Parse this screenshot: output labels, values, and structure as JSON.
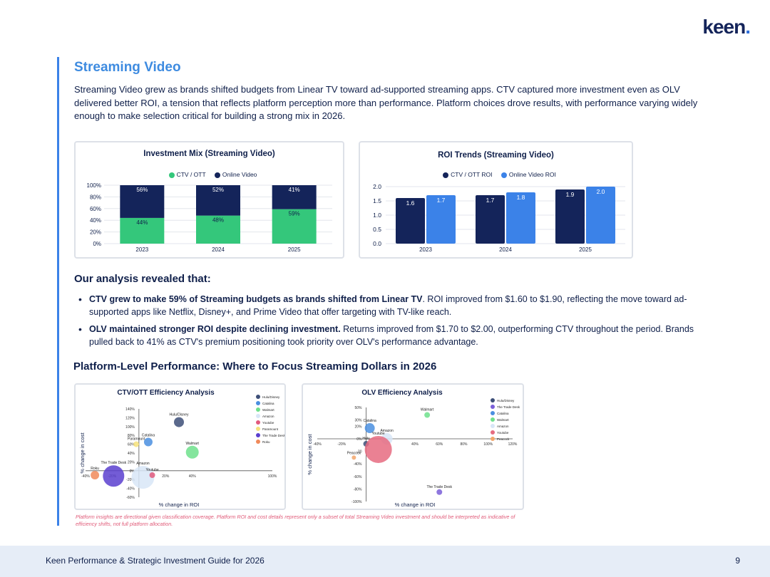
{
  "brand": {
    "logo_text": "keen",
    "accent": "#3b82e8",
    "navy": "#14245a",
    "green": "#34c77b"
  },
  "section": {
    "title": "Streaming Video",
    "intro": "Streaming Video grew as brands shifted budgets from Linear TV toward ad-supported streaming apps. CTV captured more investment even as OLV delivered better ROI, a tension that reflects platform perception more than performance. Platform choices drove results, with performance varying widely enough to make selection critical for building a strong mix in 2026."
  },
  "investment_chart": {
    "title": "Investment Mix (Streaming Video)",
    "legend": [
      "CTV / OTT",
      "Online Video"
    ]
  },
  "roi_chart": {
    "title": "ROI Trends (Streaming Video)",
    "legend": [
      "CTV / OTT ROI",
      "Online Video ROI"
    ]
  },
  "analysis": {
    "title": "Our analysis revealed that:",
    "bullets": [
      {
        "bold": "CTV grew to make 59% of Streaming budgets as brands shifted from Linear TV",
        "text": ". ROI improved from $1.60 to $1.90, reflecting the move toward ad-supported apps like Netflix, Disney+, and Prime Video that offer targeting with TV-like reach."
      },
      {
        "bold": "OLV maintained stronger ROI despite declining investment.",
        "text": " Returns improved from $1.70 to $2.00, outperforming CTV throughout the period. Brands pulled back to 41% as CTV's premium positioning took priority over OLV's performance advantage."
      }
    ]
  },
  "platform": {
    "title": "Platform-Level Performance: Where to Focus Streaming Dollars in 2026",
    "ctv_title": "CTV/OTT Efficiency Analysis",
    "olv_title": "OLV Efficiency Analysis",
    "x_label": "% change in ROI",
    "y_label": "% change in cost"
  },
  "footnote": "Platform insights are directional given classification coverage. Platform ROI and cost details represent only a subset of total Streaming Video investment and should be interpreted as indicative of efficiency shifts, not full platform allocation.",
  "footer": {
    "text": "Keen Performance & Strategic Investment Guide for 2026",
    "page": "9"
  },
  "chart_data": [
    {
      "type": "bar",
      "stacked": true,
      "title": "Investment Mix (Streaming Video)",
      "categories": [
        "2023",
        "2024",
        "2025"
      ],
      "series": [
        {
          "name": "CTV / OTT",
          "values": [
            44,
            48,
            59
          ],
          "labels": [
            "44%",
            "48%",
            "59%"
          ],
          "color": "#34c77b"
        },
        {
          "name": "Online Video",
          "values": [
            56,
            52,
            41
          ],
          "labels": [
            "56%",
            "52%",
            "41%"
          ],
          "color": "#14245a"
        }
      ],
      "yticks": [
        "0%",
        "20%",
        "40%",
        "60%",
        "80%",
        "100%"
      ],
      "ylim": [
        0,
        100
      ]
    },
    {
      "type": "bar",
      "title": "ROI Trends (Streaming Video)",
      "categories": [
        "2023",
        "2024",
        "2025"
      ],
      "series": [
        {
          "name": "CTV / OTT ROI",
          "values": [
            1.6,
            1.7,
            1.9
          ],
          "labels": [
            "1.6",
            "1.7",
            "1.9"
          ],
          "color": "#14245a"
        },
        {
          "name": "Online Video ROI",
          "values": [
            1.7,
            1.8,
            2.0
          ],
          "labels": [
            "1.7",
            "1.8",
            "2.0"
          ],
          "color": "#3b82e8"
        }
      ],
      "yticks": [
        "0.0",
        "0.5",
        "1.0",
        "1.5",
        "2.0"
      ],
      "ylim": [
        0,
        2.0
      ]
    },
    {
      "type": "scatter",
      "title": "CTV/OTT Efficiency Analysis",
      "xlabel": "% change in ROI",
      "ylabel": "% change in cost",
      "xlim": [
        -40,
        100
      ],
      "ylim": [
        -60,
        140
      ],
      "xticks": [
        "-40%",
        "-20%",
        "20%",
        "40%",
        "100%"
      ],
      "xtick_values": [
        -40,
        -20,
        20,
        40,
        100
      ],
      "yticks": [
        "-60%",
        "-40%",
        "-20%",
        "0%",
        "20%",
        "40%",
        "60%",
        "80%",
        "100%",
        "120%",
        "140%"
      ],
      "ytick_values": [
        -60,
        -40,
        -20,
        0,
        20,
        40,
        60,
        80,
        100,
        120,
        140
      ],
      "points": [
        {
          "name": "Hulu/Disney",
          "x": 30,
          "y": 110,
          "size": 7,
          "color": "#3d4f78"
        },
        {
          "name": "Catalina",
          "x": 7,
          "y": 65,
          "size": 6,
          "color": "#4a8fe0"
        },
        {
          "name": "Walmart",
          "x": 40,
          "y": 42,
          "size": 9,
          "color": "#6fe08c"
        },
        {
          "name": "Amazon",
          "x": 3,
          "y": -15,
          "size": 16,
          "color": "#d8e6f7"
        },
        {
          "name": "Youtube",
          "x": 10,
          "y": -10,
          "size": 4,
          "color": "#e25a7d"
        },
        {
          "name": "Paramount",
          "x": -2,
          "y": 60,
          "size": 4,
          "color": "#f6e27a"
        },
        {
          "name": "The Trade Desk",
          "x": -19,
          "y": -12,
          "size": 15,
          "color": "#5b3fcf"
        },
        {
          "name": "Roku",
          "x": -33,
          "y": -10,
          "size": 6,
          "color": "#f08a5a"
        }
      ],
      "legend": [
        "Hulu/Disney",
        "Catalina",
        "Walmart",
        "Amazon",
        "Youtube",
        "Paramount",
        "The Trade Desk",
        "Roku"
      ]
    },
    {
      "type": "scatter",
      "title": "OLV Efficiency Analysis",
      "xlabel": "% change in ROI",
      "ylabel": "% change in cost",
      "xlim": [
        -40,
        120
      ],
      "ylim": [
        -100,
        50
      ],
      "xticks": [
        "-40%",
        "-20%",
        "40%",
        "60%",
        "80%",
        "100%",
        "120%"
      ],
      "xtick_values": [
        -40,
        -20,
        40,
        60,
        80,
        100,
        120
      ],
      "yticks": [
        "-100%",
        "-80%",
        "-60%",
        "-40%",
        "-20",
        "0%",
        "20%",
        "30%",
        "50%"
      ],
      "ytick_values": [
        -100,
        -80,
        -60,
        -40,
        -20,
        0,
        20,
        30,
        50
      ],
      "points": [
        {
          "name": "Hulu",
          "x": 0,
          "y": -8,
          "size": 4,
          "color": "#3d4f78"
        },
        {
          "name": "The Trade Desk",
          "x": 60,
          "y": -85,
          "size": 4,
          "color": "#7a5fd8"
        },
        {
          "name": "Catalina",
          "x": 3,
          "y": 17,
          "size": 7,
          "color": "#4a8fe0"
        },
        {
          "name": "Walmart",
          "x": 50,
          "y": 38,
          "size": 4,
          "color": "#6fe08c"
        },
        {
          "name": "Amazon",
          "x": 17,
          "y": 0,
          "size": 8,
          "color": "#d8e6f7"
        },
        {
          "name": "Youtube",
          "x": 10,
          "y": -17,
          "size": 19,
          "color": "#e66b80"
        },
        {
          "name": "Peacock",
          "x": -10,
          "y": -30,
          "size": 3,
          "color": "#f2a66b"
        }
      ],
      "legend": [
        "Hulu/Disney",
        "The Trade Desk",
        "Catalina",
        "Walmart",
        "Amazon",
        "Youtube",
        "Peacock"
      ]
    }
  ]
}
